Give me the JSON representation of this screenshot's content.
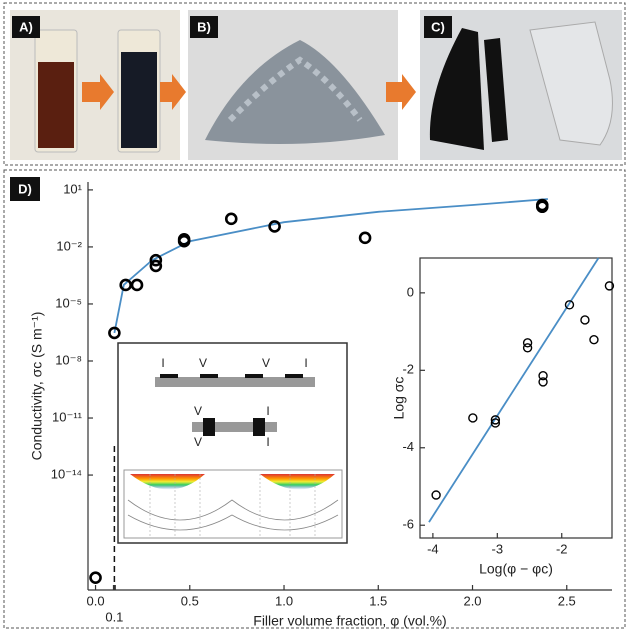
{
  "panels": {
    "a": "A)",
    "b": "B)",
    "c": "C)",
    "d": "D)"
  },
  "diagram_labels": [
    "I",
    "V",
    "V",
    "I",
    "V",
    "I",
    "V",
    "I"
  ],
  "chart_data": [
    {
      "type": "scatter",
      "log_y": true,
      "y_label": "Conductivity, σc (S m⁻¹)",
      "x_label": "Filler volume fraction, φ (vol.%)",
      "xlim": [
        -0.04,
        2.74
      ],
      "ylim": [
        9e-21,
        26
      ],
      "xticks": [
        {
          "value": 0,
          "label": "0.0"
        },
        {
          "value": 0.1,
          "label": "0.1"
        },
        {
          "value": 0.5,
          "label": "0.5"
        },
        {
          "value": 1,
          "label": "1.0"
        },
        {
          "value": 1.5,
          "label": "1.5"
        },
        {
          "value": 2,
          "label": "2.0"
        },
        {
          "value": 2.5,
          "label": "2.5"
        }
      ],
      "yticks": [
        {
          "value": 10,
          "label": "10¹"
        },
        {
          "value": 0.01,
          "label": "10⁻²"
        },
        {
          "value": 1e-05,
          "label": "10⁻⁵"
        },
        {
          "value": 1e-08,
          "label": "10⁻⁸"
        },
        {
          "value": 1e-11,
          "label": "10⁻¹¹"
        },
        {
          "value": 1e-14,
          "label": "10⁻¹⁴"
        }
      ],
      "threshold": 0.1,
      "series": [
        {
          "mode": "line",
          "color": "#4a8ec6",
          "x": [
            0.1,
            0.15,
            0.3,
            0.5,
            1.0,
            1.5,
            2.0,
            2.4
          ],
          "values": [
            3e-07,
            0.0001,
            0.002,
            0.02,
            0.2,
            0.7,
            1.6,
            3.3
          ]
        },
        {
          "mode": "markers",
          "color": "#000000",
          "x": [
            0.0,
            0.1,
            0.16,
            0.22,
            0.32,
            0.32,
            0.47,
            0.47,
            0.72,
            0.95,
            1.43,
            2.37,
            2.37
          ],
          "values": [
            4e-20,
            3e-07,
            0.0001,
            0.0001,
            0.002,
            0.001,
            0.025,
            0.02,
            0.3,
            0.12,
            0.03,
            1.6,
            1.3
          ]
        }
      ]
    },
    {
      "type": "scatter",
      "log_y": false,
      "y_label": "Log σc",
      "x_label": "Log(φ − φc)",
      "xlim": [
        -4.2,
        -1.22
      ],
      "ylim": [
        -6.33,
        0.9
      ],
      "xticks": [
        -4,
        -3,
        -2
      ],
      "yticks": [
        0,
        -2,
        -4,
        -6
      ],
      "series": [
        {
          "mode": "line",
          "color": "#4a8ec6",
          "x": [
            -4.06,
            -1.43
          ],
          "values": [
            -5.92,
            0.9
          ]
        },
        {
          "mode": "markers",
          "color": "#000000",
          "x": [
            -3.95,
            -3.38,
            -3.03,
            -3.03,
            -2.53,
            -2.53,
            -2.29,
            -2.29,
            -1.88,
            -1.64,
            -1.5,
            -1.26
          ],
          "values": [
            -5.22,
            -3.23,
            -3.28,
            -3.36,
            -1.29,
            -1.42,
            -2.14,
            -2.3,
            -0.31,
            -0.7,
            -1.21,
            0.18
          ]
        }
      ]
    }
  ]
}
